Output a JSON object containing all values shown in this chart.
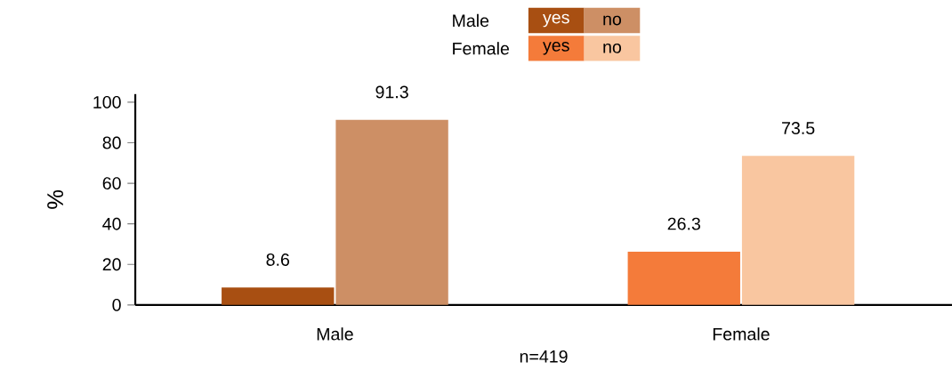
{
  "chart_data": {
    "type": "bar",
    "categories": [
      "Male",
      "Female"
    ],
    "series": [
      {
        "name": "yes",
        "colors": [
          "#a84f12",
          "#f47b3a"
        ],
        "values": [
          8.6,
          26.3
        ]
      },
      {
        "name": "no",
        "colors": [
          "#cd8f65",
          "#f9c6a0"
        ],
        "values": [
          91.3,
          73.5
        ]
      }
    ],
    "xlabel": "n=419",
    "ylabel": "%",
    "ylim": [
      0,
      104
    ],
    "yticks": [
      0,
      20,
      40,
      60,
      80,
      100
    ],
    "data_labels": true,
    "legend": "top",
    "grid": false
  }
}
